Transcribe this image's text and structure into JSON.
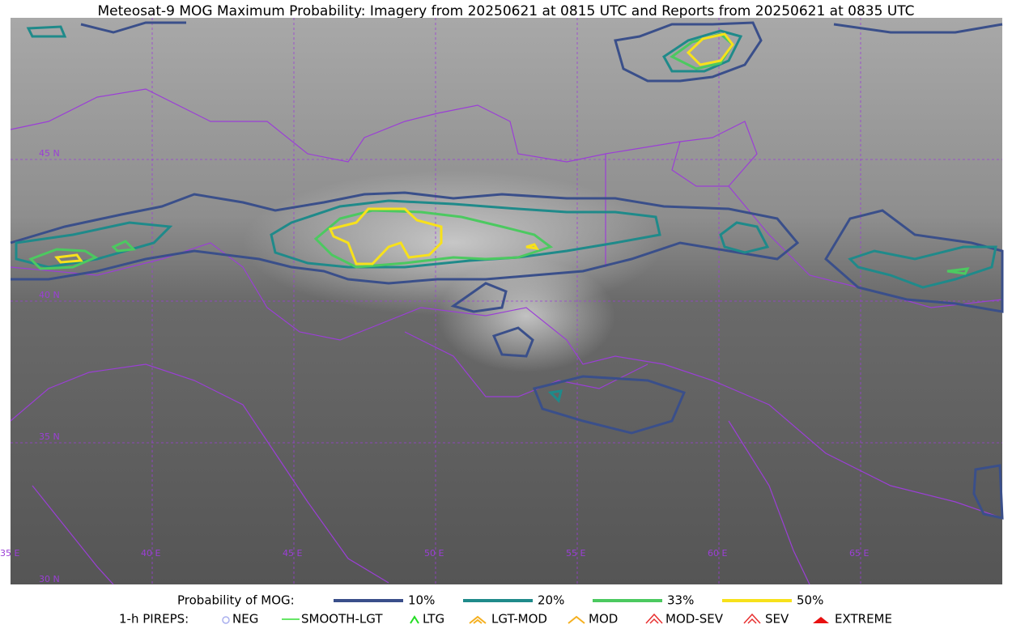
{
  "title": "Meteosat-9 MOG Maximum Probability: Imagery from 20250621 at 0815 UTC and Reports from 20250621 at 0835 UTC",
  "map": {
    "lat_labels": [
      "45 N",
      "40 N",
      "35 N",
      "30 N"
    ],
    "lon_labels": [
      "35 E",
      "40 E",
      "45 E",
      "50 E",
      "55 E",
      "60 E",
      "65 E"
    ]
  },
  "legend": {
    "probability_title": "Probability of MOG:",
    "probability_levels": [
      "10%",
      "20%",
      "33%",
      "50%"
    ],
    "pireps_title": "1-h PIREPS:",
    "pireps": [
      "NEG",
      "SMOOTH-LGT",
      "LTG",
      "LGT-MOD",
      "MOD",
      "MOD-SEV",
      "SEV",
      "EXTREME"
    ]
  }
}
